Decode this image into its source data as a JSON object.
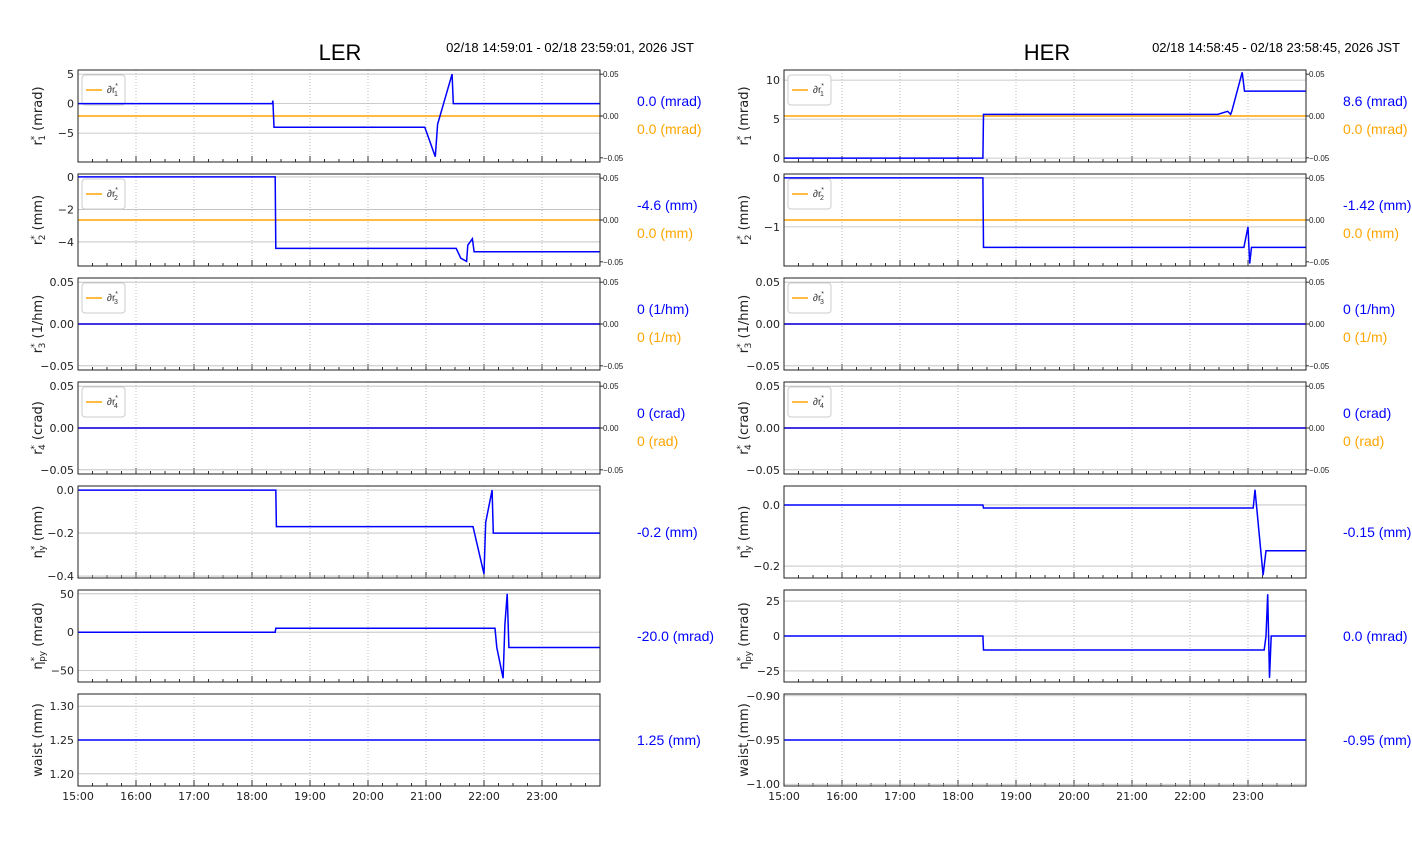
{
  "colors": {
    "series": "#0000ff",
    "ref": "#ffa500",
    "grid": "#bbbbbb"
  },
  "chart_data": [
    {
      "type": "line",
      "title": "LER",
      "time_range": "02/18 14:59:01 - 02/18 23:59:01, 2026 JST",
      "xlim": [
        15,
        24
      ],
      "xticks": [
        "15:00",
        "16:00",
        "17:00",
        "18:00",
        "19:00",
        "20:00",
        "21:00",
        "22:00",
        "23:00"
      ],
      "panels": [
        {
          "ylabel": {
            "sym": "r",
            "sub": "1",
            "unit": "(mrad)"
          },
          "ylim": [
            -9.9,
            5.7
          ],
          "yticks": [
            5,
            0,
            -5
          ],
          "yticklabels": [
            "5",
            "0",
            "−5"
          ],
          "right": {
            "ylim": [
              -0.055,
              0.055
            ],
            "ticks": [
              "0.05",
              "0.00",
              "−0.05"
            ],
            "tickvals": [
              0.05,
              0,
              -0.05
            ],
            "value": 0
          },
          "legend": "∂r",
          "legend_sub": "1",
          "series": [
            [
              15,
              0
            ],
            [
              18.35,
              0
            ],
            [
              18.36,
              0.5
            ],
            [
              18.38,
              -4
            ],
            [
              20.98,
              -4
            ],
            [
              21.16,
              -9
            ],
            [
              21.2,
              -3.5
            ],
            [
              21.45,
              5
            ],
            [
              21.47,
              0
            ],
            [
              24,
              0
            ]
          ],
          "readout": "0.0 (mrad)",
          "ref_readout": "0.0 (mrad)"
        },
        {
          "ylabel": {
            "sym": "r",
            "sub": "2",
            "unit": "(mm)"
          },
          "ylim": [
            -5.48,
            0.18
          ],
          "yticks": [
            0,
            -2,
            -4
          ],
          "yticklabels": [
            "0",
            "−2",
            "−4"
          ],
          "right": {
            "ylim": [
              -0.055,
              0.055
            ],
            "ticks": [
              "0.05",
              "0.00",
              "−0.05"
            ],
            "tickvals": [
              0.05,
              0,
              -0.05
            ],
            "value": 0
          },
          "legend": "∂r",
          "legend_sub": "2",
          "series": [
            [
              15,
              0
            ],
            [
              18.4,
              0
            ],
            [
              18.41,
              -4.4
            ],
            [
              21.52,
              -4.4
            ],
            [
              21.6,
              -5.0
            ],
            [
              21.7,
              -5.2
            ],
            [
              21.72,
              -4.2
            ],
            [
              21.8,
              -3.8
            ],
            [
              21.83,
              -4.6
            ],
            [
              24,
              -4.6
            ]
          ],
          "readout": "-4.6 (mm)",
          "ref_readout": "0.0 (mm)"
        },
        {
          "ylabel": {
            "sym": "r",
            "sub": "3",
            "unit": "(1/hm)"
          },
          "ylim": [
            -0.055,
            0.055
          ],
          "yticks": [
            0.05,
            0,
            -0.05
          ],
          "yticklabels": [
            "0.05",
            "0.00",
            "−0.05"
          ],
          "right": {
            "ylim": [
              -0.055,
              0.055
            ],
            "ticks": [
              "0.05",
              "0.00",
              "−0.05"
            ],
            "tickvals": [
              0.05,
              0,
              -0.05
            ],
            "value": 0
          },
          "legend": "∂r",
          "legend_sub": "3",
          "series": [
            [
              15,
              0
            ],
            [
              24,
              0
            ]
          ],
          "readout": "0 (1/hm)",
          "ref_readout": "0 (1/m)"
        },
        {
          "ylabel": {
            "sym": "r",
            "sub": "4",
            "unit": "(crad)"
          },
          "ylim": [
            -0.055,
            0.055
          ],
          "yticks": [
            0.05,
            0,
            -0.05
          ],
          "yticklabels": [
            "0.05",
            "0.00",
            "−0.05"
          ],
          "right": {
            "ylim": [
              -0.055,
              0.055
            ],
            "ticks": [
              "0.05",
              "0.00",
              "−0.05"
            ],
            "tickvals": [
              0.05,
              0,
              -0.05
            ],
            "value": 0
          },
          "legend": "∂r",
          "legend_sub": "4",
          "series": [
            [
              15,
              0
            ],
            [
              24,
              0
            ]
          ],
          "readout": "0 (crad)",
          "ref_readout": "0 (rad)"
        },
        {
          "ylabel": {
            "sym": "η",
            "sub": "y",
            "unit": "(mm)"
          },
          "ylim": [
            -0.409,
            0.019
          ],
          "yticks": [
            0,
            -0.2,
            -0.4
          ],
          "yticklabels": [
            "0.0",
            "−0.2",
            "−0.4"
          ],
          "series": [
            [
              15,
              0
            ],
            [
              18.41,
              0
            ],
            [
              18.42,
              -0.17
            ],
            [
              21.81,
              -0.17
            ],
            [
              22.0,
              -0.39
            ],
            [
              22.03,
              -0.15
            ],
            [
              22.14,
              0
            ],
            [
              22.16,
              -0.2
            ],
            [
              24,
              -0.2
            ]
          ],
          "readout": "-0.2 (mm)"
        },
        {
          "ylabel": {
            "sym": "η",
            "sub": "py",
            "unit": "(mrad)"
          },
          "ylim": [
            -65,
            55
          ],
          "yticks": [
            50,
            0,
            -50
          ],
          "yticklabels": [
            "50",
            "0",
            "−50"
          ],
          "series": [
            [
              15,
              0
            ],
            [
              18.4,
              0
            ],
            [
              18.41,
              5
            ],
            [
              22.19,
              5
            ],
            [
              22.22,
              -20
            ],
            [
              22.33,
              -60
            ],
            [
              22.36,
              10
            ],
            [
              22.4,
              50
            ],
            [
              22.43,
              -20
            ],
            [
              24,
              -20
            ]
          ],
          "readout": "-20.0 (mrad)"
        },
        {
          "ylabel": {
            "sym": "waist",
            "sub": "",
            "unit": "(mm)"
          },
          "ylim": [
            1.182,
            1.318
          ],
          "yticks": [
            1.3,
            1.25,
            1.2
          ],
          "yticklabels": [
            "1.30",
            "1.25",
            "1.20"
          ],
          "series": [
            [
              15,
              1.25
            ],
            [
              24,
              1.25
            ]
          ],
          "readout": "1.25 (mm)"
        }
      ]
    },
    {
      "type": "line",
      "title": "HER",
      "time_range": "02/18 14:58:45 - 02/18 23:58:45, 2026 JST",
      "xlim": [
        15,
        24
      ],
      "xticks": [
        "15:00",
        "16:00",
        "17:00",
        "18:00",
        "19:00",
        "20:00",
        "21:00",
        "22:00",
        "23:00"
      ],
      "panels": [
        {
          "ylabel": {
            "sym": "r",
            "sub": "1",
            "unit": "(mrad)"
          },
          "ylim": [
            -0.5,
            11.3
          ],
          "yticks": [
            10,
            5,
            0
          ],
          "yticklabels": [
            "10",
            "5",
            "0"
          ],
          "right": {
            "ylim": [
              -0.055,
              0.055
            ],
            "ticks": [
              "0.05",
              "0.00",
              "−0.05"
            ],
            "tickvals": [
              0.05,
              0,
              -0.05
            ],
            "value": 0
          },
          "legend": "∂r",
          "legend_sub": "1",
          "series": [
            [
              15,
              0
            ],
            [
              18.43,
              0
            ],
            [
              18.44,
              5.6
            ],
            [
              22.48,
              5.6
            ],
            [
              22.65,
              6.0
            ],
            [
              22.7,
              5.6
            ],
            [
              22.72,
              6.0
            ],
            [
              22.9,
              11
            ],
            [
              22.94,
              8.6
            ],
            [
              24,
              8.6
            ]
          ],
          "readout": "8.6 (mrad)",
          "ref_readout": "0.0 (mrad)"
        },
        {
          "ylabel": {
            "sym": "r",
            "sub": "2",
            "unit": "(mm)"
          },
          "ylim": [
            -1.8,
            0.08
          ],
          "yticks": [
            0,
            -1
          ],
          "yticklabels": [
            "0",
            "−1"
          ],
          "right": {
            "ylim": [
              -0.055,
              0.055
            ],
            "ticks": [
              "0.05",
              "0.00",
              "−0.05"
            ],
            "tickvals": [
              0.05,
              0,
              -0.05
            ],
            "value": 0
          },
          "legend": "∂r",
          "legend_sub": "2",
          "series": [
            [
              15,
              0
            ],
            [
              18.43,
              0
            ],
            [
              18.44,
              -1.42
            ],
            [
              22.93,
              -1.42
            ],
            [
              23.0,
              -1.0
            ],
            [
              23.03,
              -1.75
            ],
            [
              23.06,
              -1.42
            ],
            [
              24,
              -1.42
            ]
          ],
          "readout": "-1.42 (mm)",
          "ref_readout": "0.0 (mm)"
        },
        {
          "ylabel": {
            "sym": "r",
            "sub": "3",
            "unit": "(1/hm)"
          },
          "ylim": [
            -0.055,
            0.055
          ],
          "yticks": [
            0.05,
            0,
            -0.05
          ],
          "yticklabels": [
            "0.05",
            "0.00",
            "−0.05"
          ],
          "right": {
            "ylim": [
              -0.055,
              0.055
            ],
            "ticks": [
              "0.05",
              "0.00",
              "−0.05"
            ],
            "tickvals": [
              0.05,
              0,
              -0.05
            ],
            "value": 0
          },
          "legend": "∂r",
          "legend_sub": "3",
          "series": [
            [
              15,
              0
            ],
            [
              24,
              0
            ]
          ],
          "readout": "0 (1/hm)",
          "ref_readout": "0 (1/m)"
        },
        {
          "ylabel": {
            "sym": "r",
            "sub": "4",
            "unit": "(crad)"
          },
          "ylim": [
            -0.055,
            0.055
          ],
          "yticks": [
            0.05,
            0,
            -0.05
          ],
          "yticklabels": [
            "0.05",
            "0.00",
            "−0.05"
          ],
          "right": {
            "ylim": [
              -0.055,
              0.055
            ],
            "ticks": [
              "0.05",
              "0.00",
              "−0.05"
            ],
            "tickvals": [
              0.05,
              0,
              -0.05
            ],
            "value": 0
          },
          "legend": "∂r",
          "legend_sub": "4",
          "series": [
            [
              15,
              0
            ],
            [
              24,
              0
            ]
          ],
          "readout": "0 (crad)",
          "ref_readout": "0 (rad)"
        },
        {
          "ylabel": {
            "sym": "η",
            "sub": "y",
            "unit": "(mm)"
          },
          "ylim": [
            -0.239,
            0.062
          ],
          "yticks": [
            0,
            -0.2
          ],
          "yticklabels": [
            "0.0",
            "−0.2"
          ],
          "series": [
            [
              15,
              0
            ],
            [
              18.43,
              0
            ],
            [
              18.44,
              -0.01
            ],
            [
              23.09,
              -0.01
            ],
            [
              23.12,
              0.05
            ],
            [
              23.26,
              -0.23
            ],
            [
              23.31,
              -0.15
            ],
            [
              24,
              -0.15
            ]
          ],
          "readout": "-0.15 (mm)"
        },
        {
          "ylabel": {
            "sym": "η",
            "sub": "py",
            "unit": "(mrad)"
          },
          "ylim": [
            -32.9,
            32.9
          ],
          "yticks": [
            25,
            0,
            -25
          ],
          "yticklabels": [
            "25",
            "0",
            "−25"
          ],
          "series": [
            [
              15,
              0
            ],
            [
              18.43,
              0
            ],
            [
              18.44,
              -10
            ],
            [
              23.28,
              -10
            ],
            [
              23.31,
              0
            ],
            [
              23.34,
              30
            ],
            [
              23.37,
              -30
            ],
            [
              23.4,
              0
            ],
            [
              24,
              0
            ]
          ],
          "readout": "0.0 (mrad)"
        },
        {
          "ylabel": {
            "sym": "waist",
            "sub": "",
            "unit": "(mm)"
          },
          "ylim": [
            -1.002,
            -0.898
          ],
          "yticks": [
            -0.9,
            -0.95,
            -1.0
          ],
          "yticklabels": [
            "−0.90",
            "−0.95",
            "−1.00"
          ],
          "series": [
            [
              15,
              -0.95
            ],
            [
              24,
              -0.95
            ]
          ],
          "readout": "-0.95 (mm)"
        }
      ]
    }
  ]
}
